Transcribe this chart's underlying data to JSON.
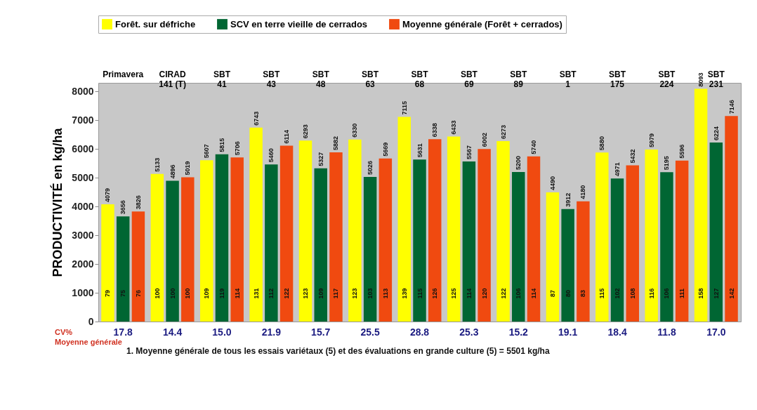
{
  "chart_data": {
    "type": "bar",
    "ylabel": "PRODUCTIVITÉ en kg/ha",
    "categories": [
      "Primavera",
      "CIRAD 141 (T)",
      "SBT 41",
      "SBT 43",
      "SBT 48",
      "SBT 63",
      "SBT 68",
      "SBT 69",
      "SBT 89",
      "SBT 1",
      "SBT 175",
      "SBT 224",
      "SBT 231"
    ],
    "series": [
      {
        "name": "Forêt. sur défriche",
        "color": "#ffff00",
        "values": [
          4079,
          5133,
          5607,
          6743,
          6293,
          6330,
          7115,
          6433,
          6273,
          4490,
          5880,
          5979,
          8093
        ]
      },
      {
        "name": "SCV en terre vieille de cerrados",
        "color": "#006633",
        "values": [
          3656,
          4896,
          5815,
          5460,
          5327,
          5026,
          5631,
          5567,
          5200,
          3912,
          4971,
          5195,
          6224
        ]
      },
      {
        "name": "Moyenne générale (Forêt + cerrados)",
        "color": "#f04a10",
        "values": [
          3826,
          5019,
          5706,
          6114,
          5882,
          5669,
          6338,
          6002,
          5740,
          4180,
          5432,
          5596,
          7146
        ]
      }
    ],
    "data_labels": true,
    "ylim": [
      0,
      8300
    ],
    "yticks": [
      0,
      1000,
      2000,
      3000,
      4000,
      5000,
      6000,
      7000,
      8000
    ],
    "grid": false,
    "legend": "top",
    "annotations": [
      "79",
      "75",
      "76",
      "100",
      "100",
      "100",
      "109",
      "119",
      "114",
      "131",
      "112",
      "122",
      "123",
      "109",
      "117",
      "123",
      "103",
      "113",
      "139",
      "115",
      "126",
      "125",
      "114",
      "120",
      "122",
      "106",
      "114",
      "87",
      "80",
      "83",
      "115",
      "102",
      "108",
      "116",
      "106",
      "111",
      "158",
      "127",
      "142",
      "17.8",
      "14.4",
      "15.0",
      "21.9",
      "15.7",
      "25.5",
      "28.8",
      "25.3",
      "15.2",
      "19.1",
      "18.4",
      "11.8",
      "17.0",
      "CV%",
      "Moyenne générale",
      "1. Moyenne générale de tous les essais variétaux (5) et des évaluations en grande culture (5) = 5501 kg/ha"
    ]
  }
}
